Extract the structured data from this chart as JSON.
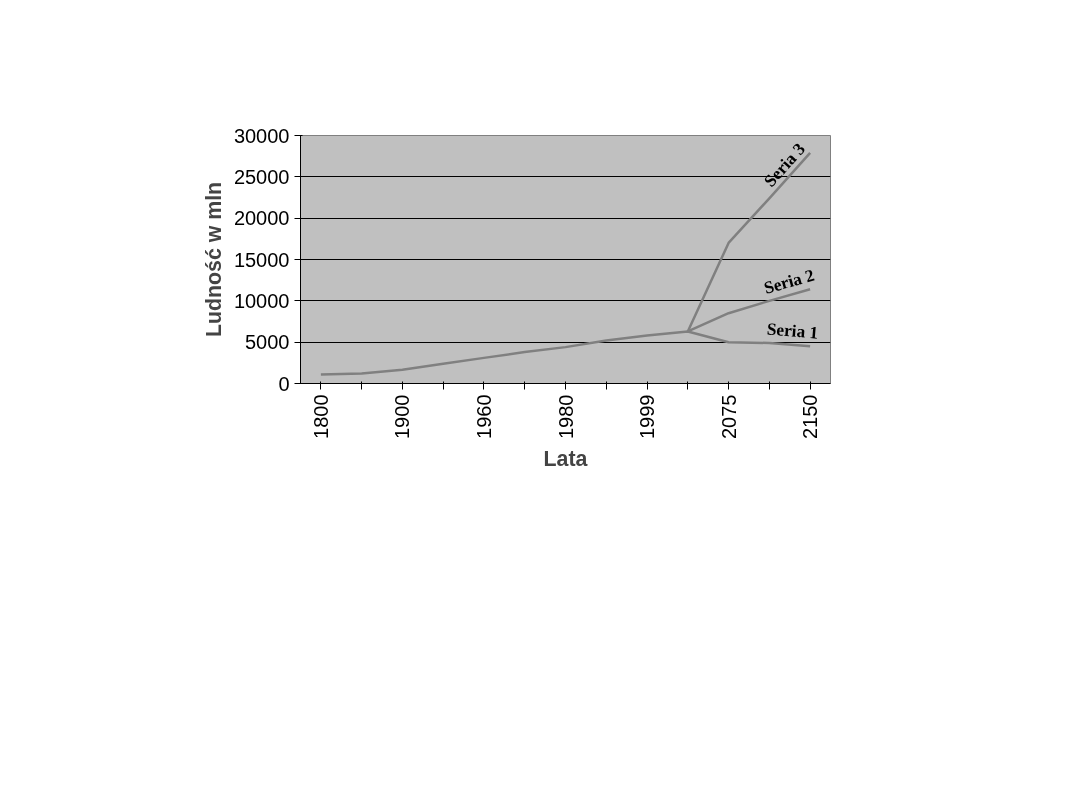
{
  "chart_data": {
    "type": "line",
    "xlabel": "Lata",
    "ylabel": "Ludność w mln",
    "categories": [
      "1800",
      null,
      "1900",
      null,
      "1960",
      null,
      "1980",
      null,
      "1999",
      null,
      "2075",
      null,
      "2150"
    ],
    "ylim": [
      0,
      30000
    ],
    "yticks": [
      0,
      5000,
      10000,
      15000,
      20000,
      25000,
      30000
    ],
    "grid": "y",
    "legend": false,
    "series": [
      {
        "name": "Seria 1",
        "color": "#808080",
        "values": [
          1100,
          1200,
          1650,
          2400,
          3100,
          3800,
          4400,
          5200,
          5800,
          6300,
          5000,
          4900,
          4500
        ]
      },
      {
        "name": "Seria 2",
        "color": "#808080",
        "values": [
          null,
          null,
          null,
          null,
          null,
          null,
          null,
          null,
          null,
          6300,
          8500,
          10000,
          11400
        ]
      },
      {
        "name": "Seria 3",
        "color": "#808080",
        "values": [
          null,
          null,
          null,
          null,
          null,
          null,
          null,
          null,
          null,
          6300,
          17000,
          22400,
          27900
        ]
      }
    ]
  }
}
